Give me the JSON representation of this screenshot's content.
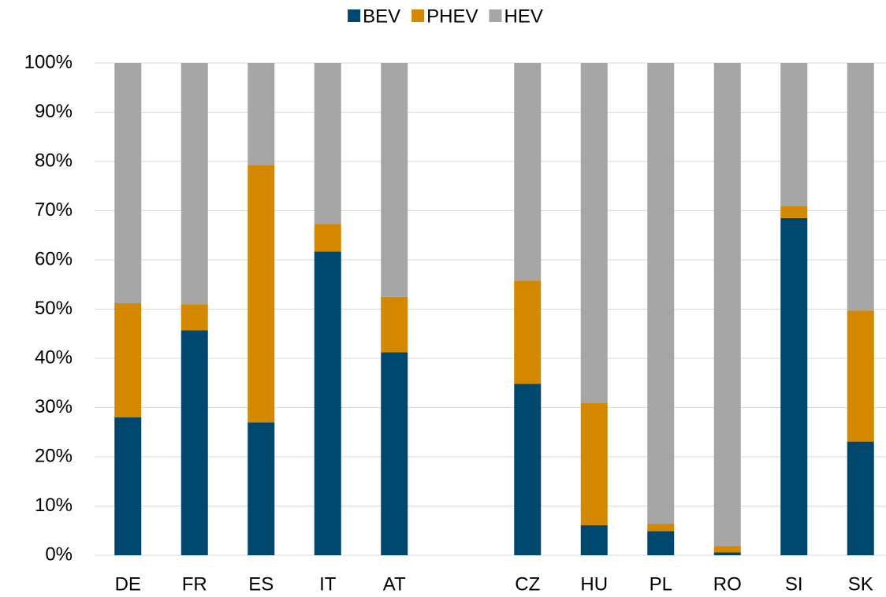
{
  "chart_data": {
    "type": "stacked_bar",
    "categories": [
      "DE",
      "FR",
      "ES",
      "IT",
      "AT",
      null,
      "CZ",
      "HU",
      "PL",
      "RO",
      "SI",
      "SK"
    ],
    "series": [
      {
        "name": "BEV",
        "color": "#00476e",
        "values": [
          28,
          45.7,
          27,
          61.7,
          41.2,
          null,
          34.8,
          6.1,
          4.9,
          0.6,
          68.5,
          23.1
        ]
      },
      {
        "name": "PHEV",
        "color": "#d38800",
        "values": [
          23.2,
          5.3,
          52.3,
          5.6,
          11.3,
          null,
          21,
          24.9,
          1.5,
          1.3,
          2.5,
          26.6
        ]
      },
      {
        "name": "HEV",
        "color": "#a6a6a6",
        "values": [
          48.8,
          49,
          20.7,
          32.7,
          47.5,
          null,
          44.2,
          69,
          93.6,
          98.1,
          29,
          50.3
        ]
      }
    ],
    "ylim": [
      0,
      100
    ],
    "yticks": [
      {
        "value": 0,
        "label": "0%"
      },
      {
        "value": 10,
        "label": "10%"
      },
      {
        "value": 20,
        "label": "20%"
      },
      {
        "value": 30,
        "label": "30%"
      },
      {
        "value": 40,
        "label": "40%"
      },
      {
        "value": 50,
        "label": "50%"
      },
      {
        "value": 60,
        "label": "60%"
      },
      {
        "value": 70,
        "label": "70%"
      },
      {
        "value": 80,
        "label": "80%"
      },
      {
        "value": 90,
        "label": "90%"
      },
      {
        "value": 100,
        "label": "100%"
      }
    ],
    "grid": true,
    "legend": "top"
  }
}
